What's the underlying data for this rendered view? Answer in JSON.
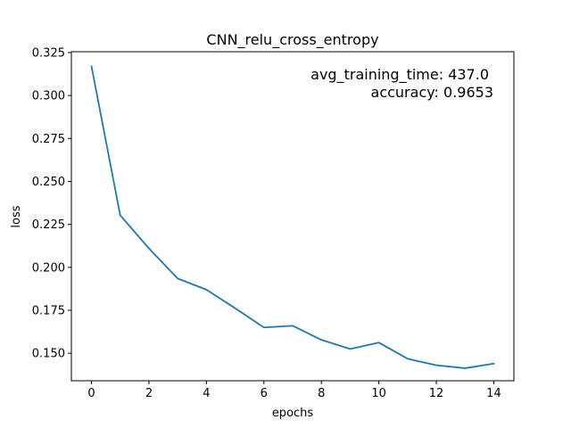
{
  "chart_data": {
    "type": "line",
    "title": "CNN_relu_cross_entropy",
    "xlabel": "epochs",
    "ylabel": "loss",
    "xlim": [
      -0.7,
      14.7
    ],
    "ylim": [
      0.134,
      0.3255
    ],
    "x_ticks": [
      0,
      2,
      4,
      6,
      8,
      10,
      12,
      14
    ],
    "x_tick_labels": [
      "0",
      "2",
      "4",
      "6",
      "8",
      "10",
      "12",
      "14"
    ],
    "y_ticks": [
      0.15,
      0.175,
      0.2,
      0.225,
      0.25,
      0.275,
      0.3,
      0.325
    ],
    "y_tick_labels": [
      "0.150",
      "0.175",
      "0.200",
      "0.225",
      "0.250",
      "0.275",
      "0.300",
      "0.325"
    ],
    "grid": false,
    "series": [
      {
        "color": "#1f77b4",
        "x": [
          0,
          1,
          2,
          3,
          4,
          5,
          6,
          7,
          8,
          9,
          10,
          11,
          12,
          13,
          14
        ],
        "y": [
          0.317,
          0.2303,
          0.211,
          0.1935,
          0.187,
          0.1762,
          0.165,
          0.166,
          0.1578,
          0.1525,
          0.1562,
          0.1468,
          0.143,
          0.1413,
          0.144
        ]
      }
    ],
    "annotations": {
      "line1": "avg_training_time: 437.0",
      "line2": "accuracy: 0.9653"
    }
  }
}
